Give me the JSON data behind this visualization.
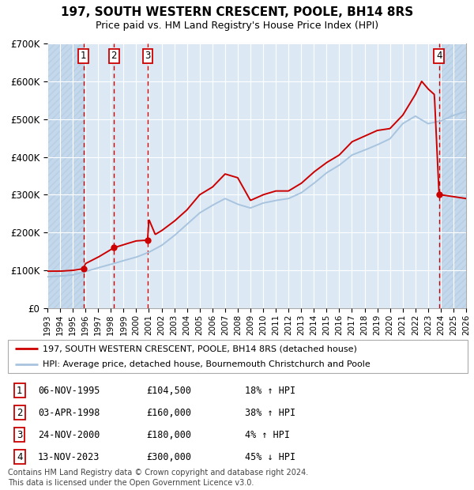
{
  "title": "197, SOUTH WESTERN CRESCENT, POOLE, BH14 8RS",
  "subtitle": "Price paid vs. HM Land Registry's House Price Index (HPI)",
  "legend_line1": "197, SOUTH WESTERN CRESCENT, POOLE, BH14 8RS (detached house)",
  "legend_line2": "HPI: Average price, detached house, Bournemouth Christchurch and Poole",
  "footer1": "Contains HM Land Registry data © Crown copyright and database right 2024.",
  "footer2": "This data is licensed under the Open Government Licence v3.0.",
  "transactions": [
    {
      "num": 1,
      "date": "06-NOV-1995",
      "price": 104500,
      "pct": "18%",
      "dir": "↑",
      "year": 1995.85
    },
    {
      "num": 2,
      "date": "03-APR-1998",
      "price": 160000,
      "pct": "38%",
      "dir": "↑",
      "year": 1998.25
    },
    {
      "num": 3,
      "date": "24-NOV-2000",
      "price": 180000,
      "pct": "4%",
      "dir": "↑",
      "year": 2000.9
    },
    {
      "num": 4,
      "date": "13-NOV-2023",
      "price": 300000,
      "pct": "45%",
      "dir": "↓",
      "year": 2023.87
    }
  ],
  "ylim": [
    0,
    700000
  ],
  "xlim_start": 1993.0,
  "xlim_end": 2026.0,
  "hpi_color": "#a8c4de",
  "price_color": "#cc0000",
  "dot_color": "#cc0000",
  "vline_color": "#cc0000",
  "bg_plot": "#dce9f5",
  "bg_hatch_color": "#c4d8ed",
  "grid_color": "#ffffff",
  "box_border": "#cc0000",
  "box_fill": "#ffffff"
}
